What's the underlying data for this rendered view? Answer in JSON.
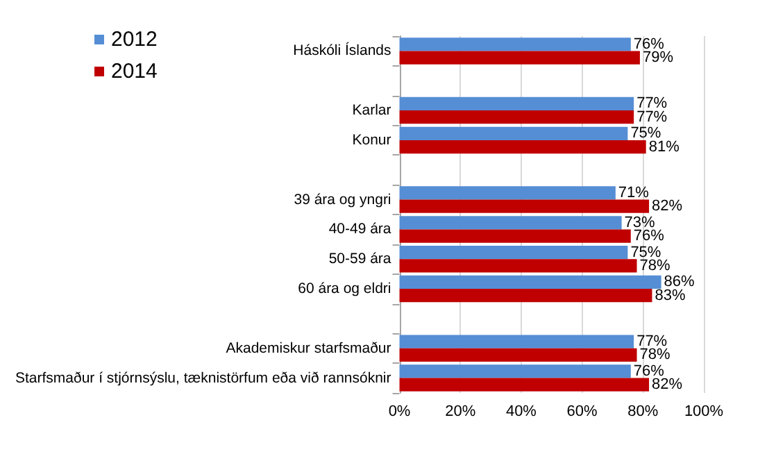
{
  "chart_data": {
    "type": "bar",
    "orientation": "horizontal",
    "categories": [
      "Háskóli Íslands",
      null,
      "Karlar",
      "Konur",
      null,
      "39 ára og yngri",
      "40-49 ára",
      "50-59 ára",
      "60 ára og eldri",
      null,
      "Akademiskur starfsmaður",
      "Starfsmaður í stjórnsýslu, tæknistörfum eða við rannsóknir"
    ],
    "series": [
      {
        "name": "2012",
        "color": "#558ed5",
        "values": [
          76,
          null,
          77,
          75,
          null,
          71,
          73,
          75,
          86,
          null,
          77,
          76
        ],
        "value_labels": [
          "76%",
          null,
          "77%",
          "75%",
          null,
          "71%",
          "73%",
          "75%",
          "86%",
          null,
          "77%",
          "76%"
        ]
      },
      {
        "name": "2014",
        "color": "#c00000",
        "values": [
          79,
          null,
          77,
          81,
          null,
          82,
          76,
          78,
          83,
          null,
          78,
          82
        ],
        "value_labels": [
          "79%",
          null,
          "77%",
          "81%",
          null,
          "82%",
          "76%",
          "78%",
          "83%",
          null,
          "78%",
          "82%"
        ]
      }
    ],
    "xlim": [
      0,
      100
    ],
    "xticks": [
      {
        "value": 0,
        "label": "0%"
      },
      {
        "value": 20,
        "label": "20%"
      },
      {
        "value": 40,
        "label": "40%"
      },
      {
        "value": 60,
        "label": "60%"
      },
      {
        "value": 80,
        "label": "80%"
      },
      {
        "value": 100,
        "label": "100%"
      }
    ],
    "grid": "x",
    "legend": "top left"
  }
}
